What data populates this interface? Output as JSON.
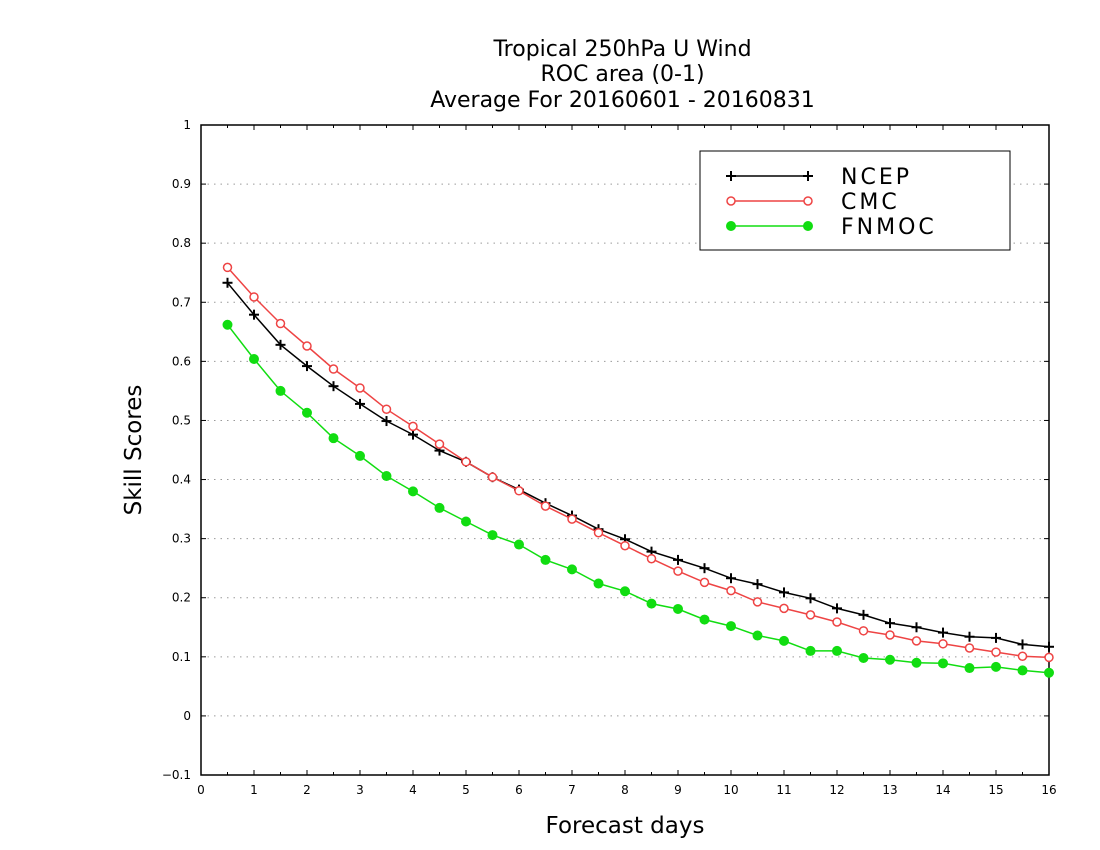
{
  "chart_data": {
    "type": "line",
    "title": "Tropical 250hPa U Wind",
    "subtitle": "ROC area (0-1)",
    "subtitle2": "Average For 20160601 - 20160831",
    "xlabel": "Forecast days",
    "ylabel": "Skill Scores",
    "xlim": [
      0,
      16
    ],
    "ylim": [
      -0.1,
      1
    ],
    "x_ticks": [
      "0",
      "1",
      "2",
      "3",
      "4",
      "5",
      "6",
      "7",
      "8",
      "9",
      "10",
      "11",
      "12",
      "13",
      "14",
      "15",
      "16"
    ],
    "y_ticks": [
      "−0.1",
      "0",
      "0.1",
      "0.2",
      "0.3",
      "0.4",
      "0.5",
      "0.6",
      "0.7",
      "0.8",
      "0.9",
      "1"
    ],
    "grid": "horizontal-dotted",
    "legend_position": "top-right",
    "x": [
      0.5,
      1,
      1.5,
      2,
      2.5,
      3,
      3.5,
      4,
      4.5,
      5,
      5.5,
      6,
      6.5,
      7,
      7.5,
      8,
      8.5,
      9,
      9.5,
      10,
      10.5,
      11,
      11.5,
      12,
      12.5,
      13,
      13.5,
      14,
      14.5,
      15,
      15.5,
      16
    ],
    "series": [
      {
        "name": "NCEP",
        "color": "#000000",
        "marker": "plus",
        "values": [
          0.733,
          0.679,
          0.628,
          0.592,
          0.558,
          0.528,
          0.499,
          0.476,
          0.449,
          0.43,
          0.404,
          0.383,
          0.36,
          0.339,
          0.316,
          0.299,
          0.278,
          0.264,
          0.25,
          0.233,
          0.223,
          0.209,
          0.199,
          0.182,
          0.171,
          0.157,
          0.15,
          0.141,
          0.134,
          0.132,
          0.121,
          0.117
        ]
      },
      {
        "name": "CMC",
        "color": "#ee4444",
        "marker": "open-circle",
        "values": [
          0.759,
          0.709,
          0.664,
          0.626,
          0.587,
          0.555,
          0.519,
          0.49,
          0.46,
          0.43,
          0.404,
          0.381,
          0.355,
          0.333,
          0.31,
          0.288,
          0.266,
          0.245,
          0.226,
          0.212,
          0.193,
          0.182,
          0.171,
          0.159,
          0.144,
          0.137,
          0.127,
          0.122,
          0.115,
          0.108,
          0.101,
          0.099
        ]
      },
      {
        "name": "FNMOC",
        "color": "#11dd11",
        "marker": "filled-circle",
        "values": [
          0.662,
          0.604,
          0.55,
          0.513,
          0.47,
          0.44,
          0.406,
          0.38,
          0.352,
          0.329,
          0.306,
          0.29,
          0.264,
          0.248,
          0.224,
          0.211,
          0.19,
          0.181,
          0.163,
          0.152,
          0.136,
          0.127,
          0.11,
          0.11,
          0.098,
          0.095,
          0.09,
          0.089,
          0.081,
          0.083,
          0.077,
          0.073
        ]
      }
    ]
  }
}
